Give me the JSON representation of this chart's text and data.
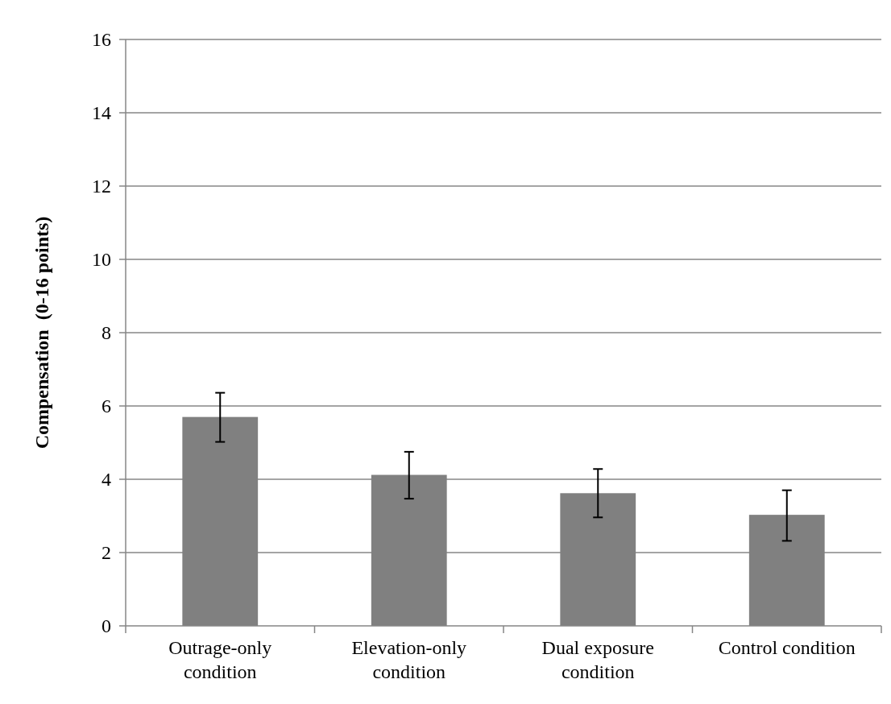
{
  "chart_data": {
    "type": "bar",
    "ylabel": "Compensation  (0-16 points)",
    "categories": [
      "Outrage-only condition",
      "Elevation-only condition",
      "Dual exposure condition",
      "Control condition"
    ],
    "values": [
      5.7,
      4.12,
      3.62,
      3.03
    ],
    "errors": [
      [
        5.02,
        6.36
      ],
      [
        3.47,
        4.75
      ],
      [
        2.96,
        4.28
      ],
      [
        2.32,
        3.7
      ]
    ],
    "color": "#808080",
    "ylim": [
      0,
      16
    ],
    "yticks": [
      0,
      2,
      4,
      6,
      8,
      10,
      12,
      14,
      16
    ],
    "grid": "y"
  }
}
